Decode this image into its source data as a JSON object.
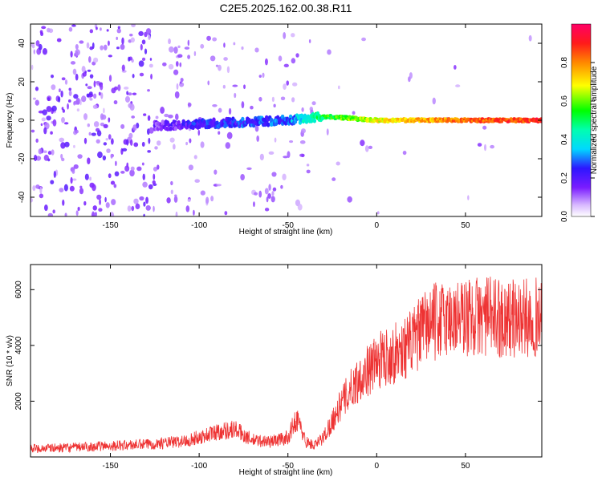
{
  "title": "C2E5.2025.162.00.38.R11",
  "chart_data": [
    {
      "type": "heatmap",
      "name": "spectrogram",
      "xlabel": "Height of straight line (km)",
      "ylabel": "Frequency (Hz)",
      "xlim": [
        -195,
        93
      ],
      "ylim": [
        -50,
        50
      ],
      "xticks": [
        -150,
        -100,
        -50,
        0,
        50
      ],
      "yticks": [
        -40,
        -20,
        0,
        20,
        40
      ],
      "colorbar": {
        "label": "Normalized spectral amplitude",
        "range": [
          0.0,
          1.0
        ],
        "ticks": [
          0.0,
          0.2,
          0.4,
          0.6,
          0.8
        ]
      },
      "carrier_frequency_hz": 0,
      "description_points": [
        {
          "x": -190,
          "y": 0,
          "amplitude": 0.1
        },
        {
          "x": -125,
          "y": -3,
          "amplitude": 0.2
        },
        {
          "x": -100,
          "y": -2,
          "amplitude": 0.3
        },
        {
          "x": -50,
          "y": 0,
          "amplitude": 0.35
        },
        {
          "x": -30,
          "y": 2,
          "amplitude": 0.6
        },
        {
          "x": 0,
          "y": 0,
          "amplitude": 0.75
        },
        {
          "x": 50,
          "y": 0,
          "amplitude": 0.9
        },
        {
          "x": 90,
          "y": 0,
          "amplitude": 0.95
        }
      ]
    },
    {
      "type": "line",
      "name": "snr",
      "xlabel": "Height of straight line (km)",
      "ylabel": "SNR (10 * v/v)",
      "xlim": [
        -195,
        93
      ],
      "ylim": [
        0,
        6900
      ],
      "xticks": [
        -150,
        -100,
        -50,
        0,
        50
      ],
      "yticks": [
        2000,
        4000,
        6000
      ],
      "color": "#ee3333",
      "series": [
        {
          "name": "SNR",
          "x": [
            -195,
            -175,
            -150,
            -130,
            -110,
            -100,
            -90,
            -80,
            -70,
            -60,
            -50,
            -45,
            -40,
            -35,
            -30,
            -25,
            -20,
            -15,
            -10,
            -5,
            0,
            5,
            10,
            15,
            20,
            25,
            30,
            40,
            50,
            60,
            70,
            80,
            93
          ],
          "values": [
            300,
            330,
            400,
            450,
            550,
            700,
            900,
            1000,
            600,
            550,
            700,
            1400,
            550,
            400,
            700,
            1300,
            1900,
            2400,
            2800,
            3100,
            3400,
            3600,
            3700,
            3900,
            4100,
            4500,
            4800,
            4950,
            5000,
            5050,
            5000,
            4950,
            5050
          ]
        }
      ]
    }
  ]
}
